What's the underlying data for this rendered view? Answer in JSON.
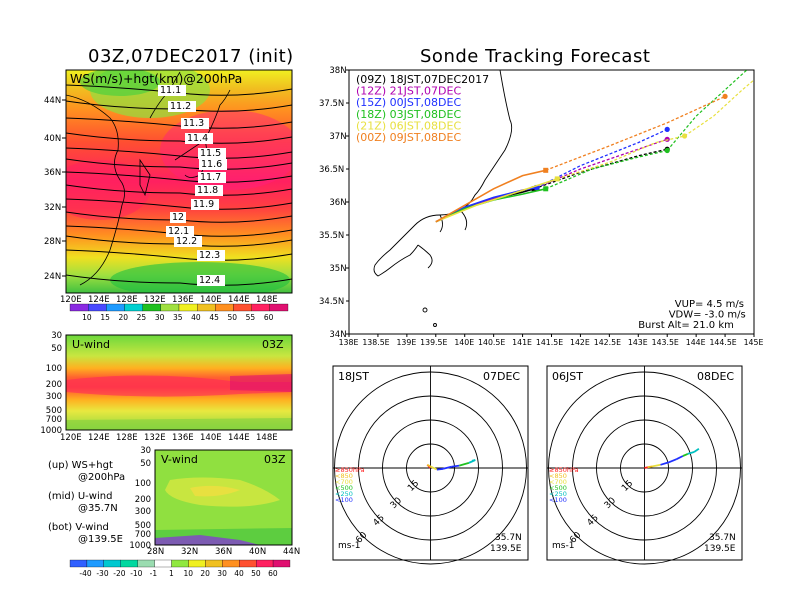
{
  "left_title": "03Z,07DEC2017 (init)",
  "right_title": "Sonde Tracking Forecast",
  "map": {
    "label": "WS(m/s)+hgt(km)@200hPa",
    "lat_labels": [
      "44N",
      "40N",
      "36N",
      "32N",
      "28N",
      "24N"
    ],
    "lon_labels": [
      "120E",
      "124E",
      "128E",
      "132E",
      "136E",
      "140E",
      "144E",
      "148E"
    ],
    "contour_labels": [
      "11.1",
      "11.2",
      "11.3",
      "11.4",
      "11.5",
      "11.6",
      "11.7",
      "11.8",
      "11.9",
      "12",
      "12.1",
      "12.2",
      "12.3",
      "12.4"
    ]
  },
  "ws_colorbar": {
    "labels": [
      "10",
      "15",
      "20",
      "25",
      "30",
      "35",
      "40",
      "45",
      "50",
      "55",
      "60"
    ],
    "colors": [
      "#8a2be2",
      "#4a4aff",
      "#1e9bff",
      "#00d0d0",
      "#20c020",
      "#a0e040",
      "#f0f020",
      "#f0c020",
      "#ff9020",
      "#ff5030",
      "#ff2060",
      "#e01070"
    ]
  },
  "uwind": {
    "title": "U-wind",
    "time": "03Z",
    "plevels": [
      "30",
      "50",
      "100",
      "200",
      "300",
      "500",
      "700",
      "1000"
    ],
    "lon_labels": [
      "120E",
      "124E",
      "128E",
      "132E",
      "136E",
      "140E",
      "144E",
      "148E"
    ]
  },
  "vwind": {
    "title": "V-wind",
    "time": "03Z",
    "plevels": [
      "30",
      "50",
      "100",
      "200",
      "300",
      "500",
      "700",
      "1000"
    ],
    "lat_labels": [
      "28N",
      "32N",
      "36N",
      "40N",
      "44N"
    ]
  },
  "notes": [
    {
      "a": "(up) WS+hgt",
      "b": "@200hPa"
    },
    {
      "a": "(mid) U-wind",
      "b": "@35.7N"
    },
    {
      "a": "(bot) V-wind",
      "b": "@139.5E"
    }
  ],
  "wind_colorbar": {
    "labels": [
      "-40",
      "-30",
      "-20",
      "-10",
      "-1",
      "1",
      "10",
      "20",
      "30",
      "40",
      "50",
      "60"
    ],
    "colors": [
      "#3060ff",
      "#1e9bff",
      "#00c8d0",
      "#00d8a0",
      "#9adcb0",
      "#ffffff",
      "#90e840",
      "#f0f020",
      "#f0c020",
      "#ff9020",
      "#ff5030",
      "#ff2060",
      "#e01070"
    ]
  },
  "tracking": {
    "lat_labels": [
      "38N",
      "37.5N",
      "37N",
      "36.5N",
      "36N",
      "35.5N",
      "35N",
      "34.5N",
      "34N"
    ],
    "lon_labels": [
      "138E",
      "138.5E",
      "139E",
      "139.5E",
      "140E",
      "140.5E",
      "141E",
      "141.5E",
      "142E",
      "142.5E",
      "143E",
      "143.5E",
      "144E",
      "144.5E",
      "145E"
    ],
    "legend": [
      {
        "label": "(09Z) 18JST,07DEC2017",
        "color": "#000000"
      },
      {
        "label": "(12Z) 21JST,07DEC",
        "color": "#b000b0"
      },
      {
        "label": "(15Z) 00JST,08DEC",
        "color": "#2030ff"
      },
      {
        "label": "(18Z) 03JST,08DEC",
        "color": "#20c020"
      },
      {
        "label": "(21Z) 06JST,08DEC",
        "color": "#e8e040"
      },
      {
        "label": "(00Z) 09JST,08DEC",
        "color": "#f08020"
      }
    ],
    "info": [
      "VUP= 4.5 m/s",
      "VDW= -3.0 m/s",
      "Burst Alt= 21.0 km"
    ]
  },
  "chart_data": {
    "type": "line",
    "title": "Sonde Tracking Forecast",
    "xlim": [
      138,
      145
    ],
    "ylim": [
      34,
      38
    ],
    "launch": {
      "lon": 139.5,
      "lat": 35.7
    },
    "series": [
      {
        "name": "(09Z) 18JST,07DEC2017",
        "color": "#000000",
        "ascent": [
          [
            139.5,
            35.7
          ],
          [
            140.0,
            35.9
          ],
          [
            140.5,
            36.05
          ],
          [
            141.0,
            36.15
          ],
          [
            141.2,
            36.2
          ]
        ],
        "descent": [
          [
            141.2,
            36.2
          ],
          [
            142.0,
            36.45
          ],
          [
            143.0,
            36.7
          ],
          [
            143.5,
            36.8
          ]
        ],
        "tail": []
      },
      {
        "name": "(12Z) 21JST,07DEC",
        "color": "#b000b0",
        "ascent": [
          [
            139.5,
            35.7
          ],
          [
            140.0,
            35.9
          ],
          [
            140.5,
            36.06
          ],
          [
            141.0,
            36.18
          ],
          [
            141.25,
            36.22
          ]
        ],
        "descent": [
          [
            141.25,
            36.22
          ],
          [
            142.0,
            36.5
          ],
          [
            143.0,
            36.8
          ],
          [
            143.5,
            36.95
          ]
        ],
        "tail": []
      },
      {
        "name": "(15Z) 00JST,08DEC",
        "color": "#2030ff",
        "ascent": [
          [
            139.5,
            35.7
          ],
          [
            140.0,
            35.92
          ],
          [
            140.5,
            36.07
          ],
          [
            141.0,
            36.18
          ],
          [
            141.25,
            36.22
          ]
        ],
        "descent": [
          [
            141.25,
            36.22
          ],
          [
            142.0,
            36.55
          ],
          [
            143.0,
            36.9
          ],
          [
            143.5,
            37.1
          ]
        ],
        "tail": []
      },
      {
        "name": "(18Z) 03JST,08DEC",
        "color": "#20c020",
        "ascent": [
          [
            139.5,
            35.7
          ],
          [
            140.0,
            35.9
          ],
          [
            140.5,
            36.03
          ],
          [
            141.0,
            36.12
          ],
          [
            141.4,
            36.2
          ]
        ],
        "descent": [
          [
            141.4,
            36.2
          ],
          [
            142.2,
            36.5
          ],
          [
            143.0,
            36.68
          ],
          [
            143.5,
            36.78
          ]
        ],
        "tail": [
          [
            143.5,
            36.78
          ],
          [
            144.0,
            37.3
          ],
          [
            144.5,
            37.7
          ],
          [
            145.0,
            38.1
          ]
        ]
      },
      {
        "name": "(21Z) 06JST,08DEC",
        "color": "#e8e040",
        "ascent": [
          [
            139.5,
            35.7
          ],
          [
            140.2,
            35.95
          ],
          [
            140.8,
            36.12
          ],
          [
            141.6,
            36.35
          ]
        ],
        "descent": [
          [
            141.6,
            36.35
          ],
          [
            142.5,
            36.6
          ],
          [
            143.3,
            36.9
          ],
          [
            143.8,
            37.0
          ]
        ],
        "tail": [
          [
            143.8,
            37.0
          ],
          [
            144.3,
            37.3
          ],
          [
            144.8,
            37.7
          ],
          [
            145.2,
            38.0
          ]
        ]
      },
      {
        "name": "(00Z) 09JST,08DEC",
        "color": "#f08020",
        "ascent": [
          [
            139.5,
            35.7
          ],
          [
            140.0,
            35.95
          ],
          [
            140.5,
            36.2
          ],
          [
            141.0,
            36.4
          ],
          [
            141.4,
            36.48
          ]
        ],
        "descent": [
          [
            141.4,
            36.48
          ],
          [
            142.5,
            36.85
          ],
          [
            143.5,
            37.2
          ],
          [
            144.5,
            37.6
          ]
        ],
        "tail": []
      }
    ]
  },
  "hodo_left": {
    "time": "18JST",
    "date": "07DEC",
    "location": [
      "35.7N",
      "139.5E"
    ],
    "units": "ms-1",
    "ring_labels": [
      "15",
      "30",
      "45",
      "60"
    ],
    "levels": [
      {
        "label": "≥850hPa",
        "color": "#ff2020"
      },
      {
        "label": "<850",
        "color": "#f0c020"
      },
      {
        "label": "<700",
        "color": "#e8e040"
      },
      {
        "label": "<500",
        "color": "#20c020"
      },
      {
        "label": "<250",
        "color": "#00c0c0"
      },
      {
        "label": "<100",
        "color": "#2030ff"
      }
    ],
    "winds": [
      [
        0,
        0
      ],
      [
        -2,
        2
      ],
      [
        0,
        1
      ],
      [
        4,
        -1
      ],
      [
        8,
        -0.5
      ],
      [
        13,
        0.8
      ],
      [
        18,
        1.5
      ],
      [
        24,
        3.2
      ],
      [
        28,
        5
      ],
      [
        26,
        4.5
      ]
    ]
  },
  "hodo_right": {
    "time": "06JST",
    "date": "08DEC",
    "location": [
      "35.7N",
      "139.5E"
    ],
    "units": "ms-1",
    "ring_labels": [
      "15",
      "30",
      "45",
      "60"
    ],
    "levels": [
      {
        "label": "≥850hPa",
        "color": "#ff2020"
      },
      {
        "label": "<850",
        "color": "#f0c020"
      },
      {
        "label": "<700",
        "color": "#e8e040"
      },
      {
        "label": "<500",
        "color": "#20c020"
      },
      {
        "label": "<250",
        "color": "#00c0c0"
      },
      {
        "label": "<100",
        "color": "#2030ff"
      }
    ],
    "winds": [
      [
        0,
        0
      ],
      [
        2,
        0.5
      ],
      [
        5,
        1
      ],
      [
        10,
        2
      ],
      [
        15,
        3.5
      ],
      [
        20,
        5.5
      ],
      [
        24,
        7.5
      ],
      [
        27,
        8.8
      ],
      [
        31,
        10
      ],
      [
        34,
        12
      ]
    ]
  }
}
